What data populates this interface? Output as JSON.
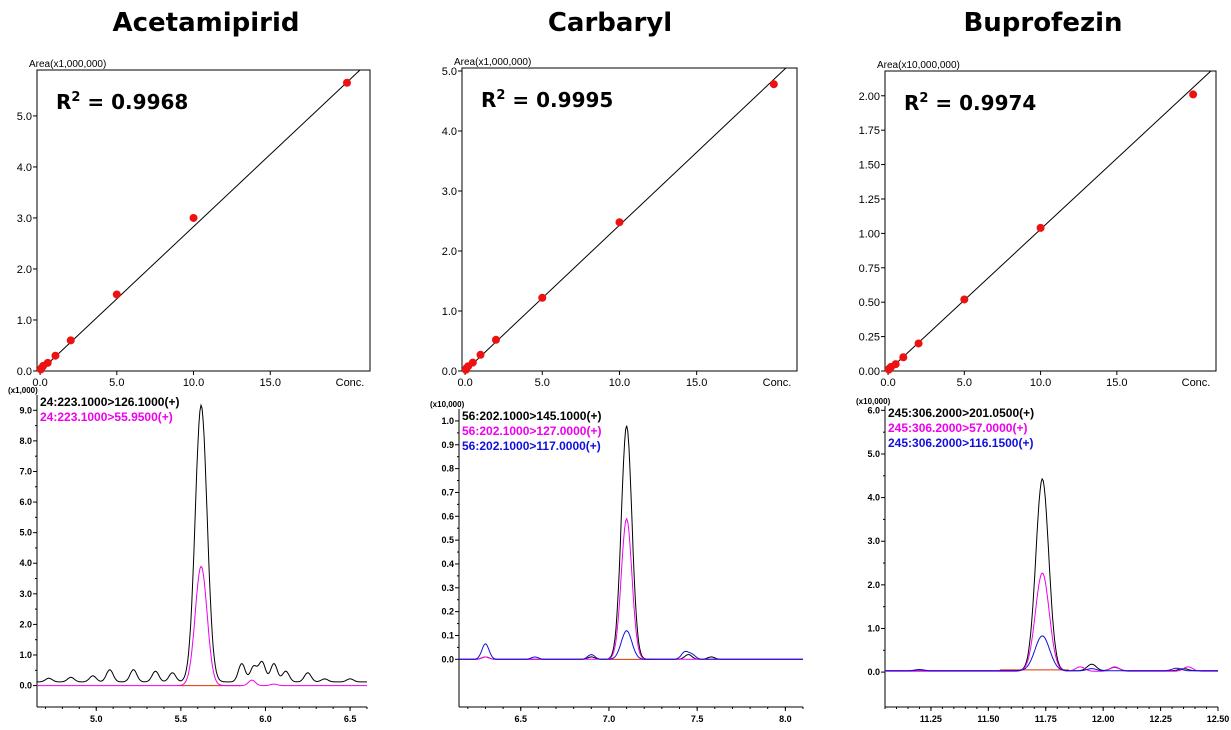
{
  "titles": [
    "Acetamipirid",
    "Carbaryl",
    "Buprofezin"
  ],
  "colors": {
    "point": "#ee1111",
    "fit": "#000000",
    "black": "#000000",
    "magenta": "#ee00ee",
    "blue": "#1010dd",
    "baseline": "#dd3300"
  },
  "chart_data": [
    {
      "type": "scatter",
      "title": "Acetamipirid",
      "ylabel": "Area(x1,000,000)",
      "xlabel": "Conc.",
      "r2_label": "R",
      "r2_sup": "2",
      "r2_value": " = 0.9968",
      "xlim": [
        -0.2,
        21.5
      ],
      "ylim": [
        0,
        5.9
      ],
      "xticks": [
        "0.0",
        "5.0",
        "10.0",
        "15.0"
      ],
      "xtick_values": [
        0,
        5,
        10,
        15
      ],
      "yticks": [
        "0.0",
        "1.0",
        "2.0",
        "3.0",
        "4.0",
        "5.0"
      ],
      "ytick_values": [
        0,
        1,
        2,
        3,
        4,
        5
      ],
      "x": [
        0.05,
        0.1,
        0.2,
        0.5,
        1.0,
        2.0,
        5.0,
        10.0,
        20.0
      ],
      "y": [
        0.03,
        0.06,
        0.1,
        0.16,
        0.3,
        0.6,
        1.5,
        3.0,
        5.65
      ],
      "fit": {
        "slope": 0.283,
        "intercept": 0.0
      }
    },
    {
      "type": "scatter",
      "title": "Carbaryl",
      "ylabel": "Area(x1,000,000)",
      "xlabel": "Conc.",
      "r2_label": "R",
      "r2_sup": "2",
      "r2_value": " = 0.9995",
      "xlim": [
        -0.2,
        21.5
      ],
      "ylim": [
        0,
        5.05
      ],
      "xticks": [
        "0.0",
        "5.0",
        "10.0",
        "15.0"
      ],
      "xtick_values": [
        0,
        5,
        10,
        15
      ],
      "yticks": [
        "0.0",
        "1.0",
        "2.0",
        "3.0",
        "4.0",
        "5.0"
      ],
      "ytick_values": [
        0,
        1,
        2,
        3,
        4,
        5
      ],
      "x": [
        0.05,
        0.1,
        0.2,
        0.5,
        1.0,
        2.0,
        5.0,
        10.0,
        20.0
      ],
      "y": [
        0.02,
        0.05,
        0.08,
        0.14,
        0.27,
        0.52,
        1.22,
        2.48,
        4.78
      ],
      "fit": {
        "slope": 0.243,
        "intercept": 0.0
      }
    },
    {
      "type": "scatter",
      "title": "Buprofezin",
      "ylabel": "Area(x10,000,000)",
      "xlabel": "Conc.",
      "r2_label": "R",
      "r2_sup": "2",
      "r2_value": " = 0.9974",
      "xlim": [
        -0.2,
        21.5
      ],
      "ylim": [
        0,
        2.18
      ],
      "xticks": [
        "0.0",
        "5.0",
        "10.0",
        "15.0"
      ],
      "xtick_values": [
        0,
        5,
        10,
        15
      ],
      "yticks": [
        "0.00",
        "0.25",
        "0.50",
        "0.75",
        "1.00",
        "1.25",
        "1.50",
        "1.75",
        "2.00"
      ],
      "ytick_values": [
        0,
        0.25,
        0.5,
        0.75,
        1.0,
        1.25,
        1.5,
        1.75,
        2.0
      ],
      "x": [
        0.05,
        0.1,
        0.2,
        0.5,
        1.0,
        2.0,
        5.0,
        10.0,
        20.0
      ],
      "y": [
        0.01,
        0.02,
        0.03,
        0.05,
        0.1,
        0.2,
        0.52,
        1.04,
        2.01
      ],
      "fit": {
        "slope": 0.103,
        "intercept": 0.0
      }
    },
    {
      "type": "line",
      "title": "Acetamipirid",
      "yunit": "(x1,000)",
      "xlim": [
        4.65,
        6.6
      ],
      "ylim": [
        -0.7,
        9.5
      ],
      "xticks": [
        "5.0",
        "5.5",
        "6.0",
        "6.5"
      ],
      "xtick_values": [
        5.0,
        5.5,
        6.0,
        6.5
      ],
      "yticks": [
        "0.0",
        "1.0",
        "2.0",
        "3.0",
        "4.0",
        "5.0",
        "6.0",
        "7.0",
        "8.0",
        "9.0"
      ],
      "ytick_values": [
        0,
        1,
        2,
        3,
        4,
        5,
        6,
        7,
        8,
        9
      ],
      "series": [
        {
          "name": "24:223.1000>126.1000(+)",
          "color": "black",
          "center": 5.62,
          "height": 9.05,
          "width": 0.035,
          "base": 0.12,
          "bumps": [
            [
              4.72,
              0.12
            ],
            [
              4.85,
              0.15
            ],
            [
              4.98,
              0.2
            ],
            [
              5.08,
              0.4
            ],
            [
              5.22,
              0.4
            ],
            [
              5.35,
              0.35
            ],
            [
              5.45,
              0.3
            ],
            [
              5.86,
              0.6
            ],
            [
              5.93,
              0.5
            ],
            [
              5.98,
              0.65
            ],
            [
              6.05,
              0.6
            ],
            [
              6.12,
              0.35
            ],
            [
              6.25,
              0.3
            ],
            [
              6.35,
              0.1
            ],
            [
              6.5,
              0.1
            ]
          ]
        },
        {
          "name": "24:223.1000>55.9500(+)",
          "color": "magenta",
          "center": 5.62,
          "height": 3.9,
          "width": 0.035,
          "base": 0.0,
          "bumps": [
            [
              5.92,
              0.18
            ],
            [
              6.05,
              0.05
            ]
          ]
        }
      ],
      "baseline": {
        "from": 5.48,
        "to": 5.85,
        "value": 0.0
      }
    },
    {
      "type": "line",
      "title": "Carbaryl",
      "yunit": "(x10,000)",
      "xlim": [
        6.15,
        8.1
      ],
      "ylim": [
        -0.2,
        1.05
      ],
      "xticks": [
        "6.5",
        "7.0",
        "7.5",
        "8.0"
      ],
      "xtick_values": [
        6.5,
        7.0,
        7.5,
        8.0
      ],
      "yticks": [
        "0.0",
        "0.1",
        "0.2",
        "0.3",
        "0.4",
        "0.5",
        "0.6",
        "0.7",
        "0.8",
        "0.9",
        "1.0"
      ],
      "ytick_values": [
        0,
        0.1,
        0.2,
        0.3,
        0.4,
        0.5,
        0.6,
        0.7,
        0.8,
        0.9,
        1.0
      ],
      "series": [
        {
          "name": "56:202.1000>145.1000(+)",
          "color": "black",
          "center": 7.1,
          "height": 0.98,
          "width": 0.03,
          "base": 0.0,
          "bumps": [
            [
              6.3,
              0.01
            ],
            [
              6.9,
              0.01
            ],
            [
              7.45,
              0.02
            ],
            [
              7.58,
              0.01
            ]
          ]
        },
        {
          "name": "56:202.1000>127.0000(+)",
          "color": "magenta",
          "center": 7.1,
          "height": 0.59,
          "width": 0.03,
          "base": 0.0,
          "bumps": [
            [
              6.3,
              0.01
            ]
          ]
        },
        {
          "name": "56:202.1000>117.0000(+)",
          "color": "blue",
          "center": 7.1,
          "height": 0.12,
          "width": 0.03,
          "base": 0.0,
          "bumps": [
            [
              6.3,
              0.065
            ],
            [
              6.58,
              0.01
            ],
            [
              6.9,
              0.02
            ],
            [
              7.43,
              0.03
            ],
            [
              7.47,
              0.02
            ]
          ]
        }
      ],
      "baseline": {
        "from": 7.0,
        "to": 7.25,
        "value": 0.0
      }
    },
    {
      "type": "line",
      "title": "Buprofezin",
      "yunit": "(x10,000)",
      "xlim": [
        11.05,
        12.5
      ],
      "ylim": [
        -0.8,
        6.1
      ],
      "xticks": [
        "11.25",
        "11.50",
        "11.75",
        "12.00",
        "12.25",
        "12.50"
      ],
      "xtick_values": [
        11.25,
        11.5,
        11.75,
        12.0,
        12.25,
        12.5
      ],
      "yticks": [
        "0.0",
        "1.0",
        "2.0",
        "3.0",
        "4.0",
        "5.0",
        "6.0"
      ],
      "ytick_values": [
        0,
        1,
        2,
        3,
        4,
        5,
        6
      ],
      "series": [
        {
          "name": "245:306.2000>201.0500(+)",
          "color": "black",
          "center": 11.735,
          "height": 4.4,
          "width": 0.028,
          "base": 0.03,
          "bumps": [
            [
              11.95,
              0.15
            ],
            [
              12.05,
              0.08
            ],
            [
              12.35,
              0.05
            ]
          ]
        },
        {
          "name": "245:306.2000>57.0000(+)",
          "color": "magenta",
          "center": 11.735,
          "height": 2.25,
          "width": 0.03,
          "base": 0.02,
          "bumps": [
            [
              11.9,
              0.1
            ],
            [
              12.05,
              0.1
            ],
            [
              12.37,
              0.1
            ]
          ]
        },
        {
          "name": "245:306.2000>116.1500(+)",
          "color": "blue",
          "center": 11.735,
          "height": 0.8,
          "width": 0.032,
          "base": 0.03,
          "bumps": [
            [
              11.2,
              0.03
            ],
            [
              11.95,
              0.05
            ],
            [
              12.32,
              0.06
            ]
          ]
        }
      ],
      "baseline": {
        "from": 11.55,
        "to": 11.85,
        "value": 0.05
      }
    }
  ]
}
